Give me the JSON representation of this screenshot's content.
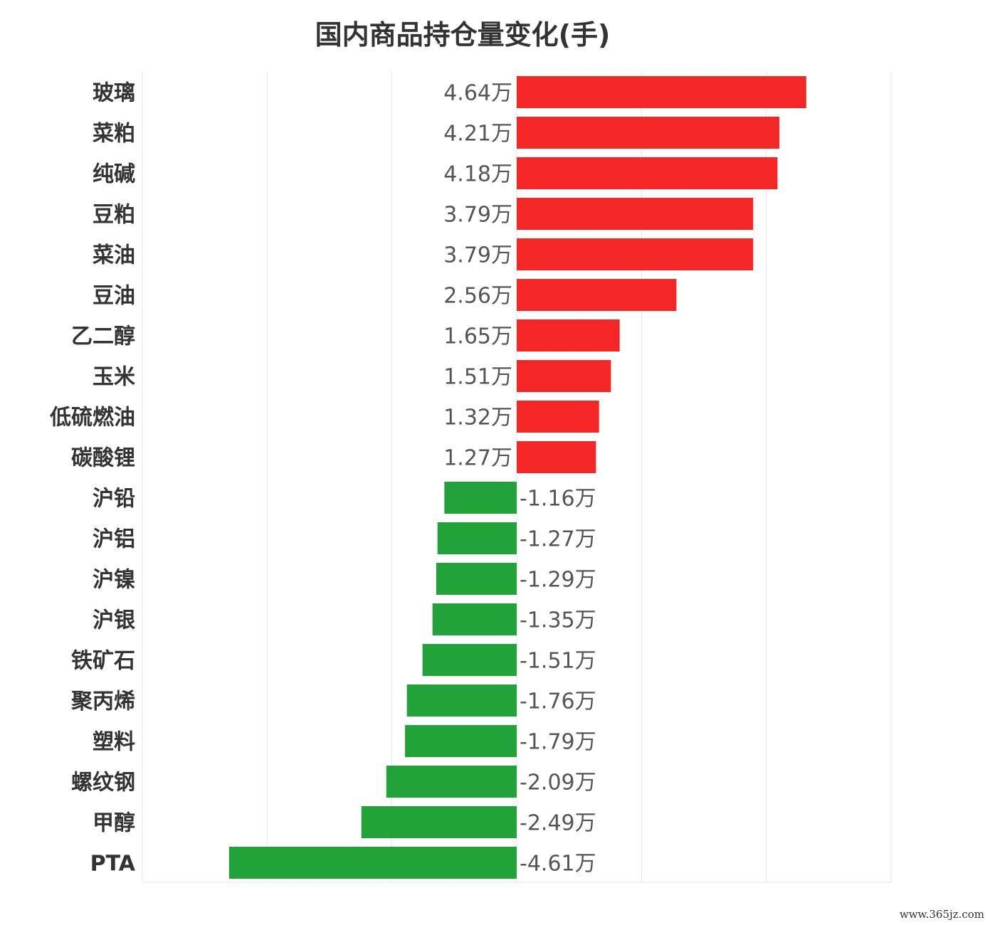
{
  "chart_data": {
    "type": "bar",
    "orientation": "horizontal",
    "title": "国内商品持仓量变化(手)",
    "xlabel": "",
    "ylabel": "",
    "unit_suffix": "万",
    "xlim": [
      -6,
      6
    ],
    "grid": true,
    "categories": [
      "玻璃",
      "菜粕",
      "纯碱",
      "豆粕",
      "菜油",
      "豆油",
      "乙二醇",
      "玉米",
      "低硫燃油",
      "碳酸锂",
      "沪铅",
      "沪铝",
      "沪镍",
      "沪银",
      "铁矿石",
      "聚丙烯",
      "塑料",
      "螺纹钢",
      "甲醇",
      "PTA"
    ],
    "values": [
      4.64,
      4.21,
      4.18,
      3.79,
      3.79,
      2.56,
      1.65,
      1.51,
      1.32,
      1.27,
      -1.16,
      -1.27,
      -1.29,
      -1.35,
      -1.51,
      -1.76,
      -1.79,
      -2.09,
      -2.49,
      -4.61
    ],
    "data_labels": [
      "4.64万",
      "4.21万",
      "4.18万",
      "3.79万",
      "3.79万",
      "2.56万",
      "1.65万",
      "1.51万",
      "1.32万",
      "1.27万",
      "-1.16万",
      "-1.27万",
      "-1.29万",
      "-1.35万",
      "-1.51万",
      "-1.76万",
      "-1.79万",
      "-2.09万",
      "-2.49万",
      "-4.61万"
    ],
    "colors": {
      "positive": "#f52626",
      "negative": "#22a33a",
      "grid": "#e6e6e6",
      "label": "#555555",
      "category": "#333333"
    }
  },
  "watermark": "www.365jz.com"
}
